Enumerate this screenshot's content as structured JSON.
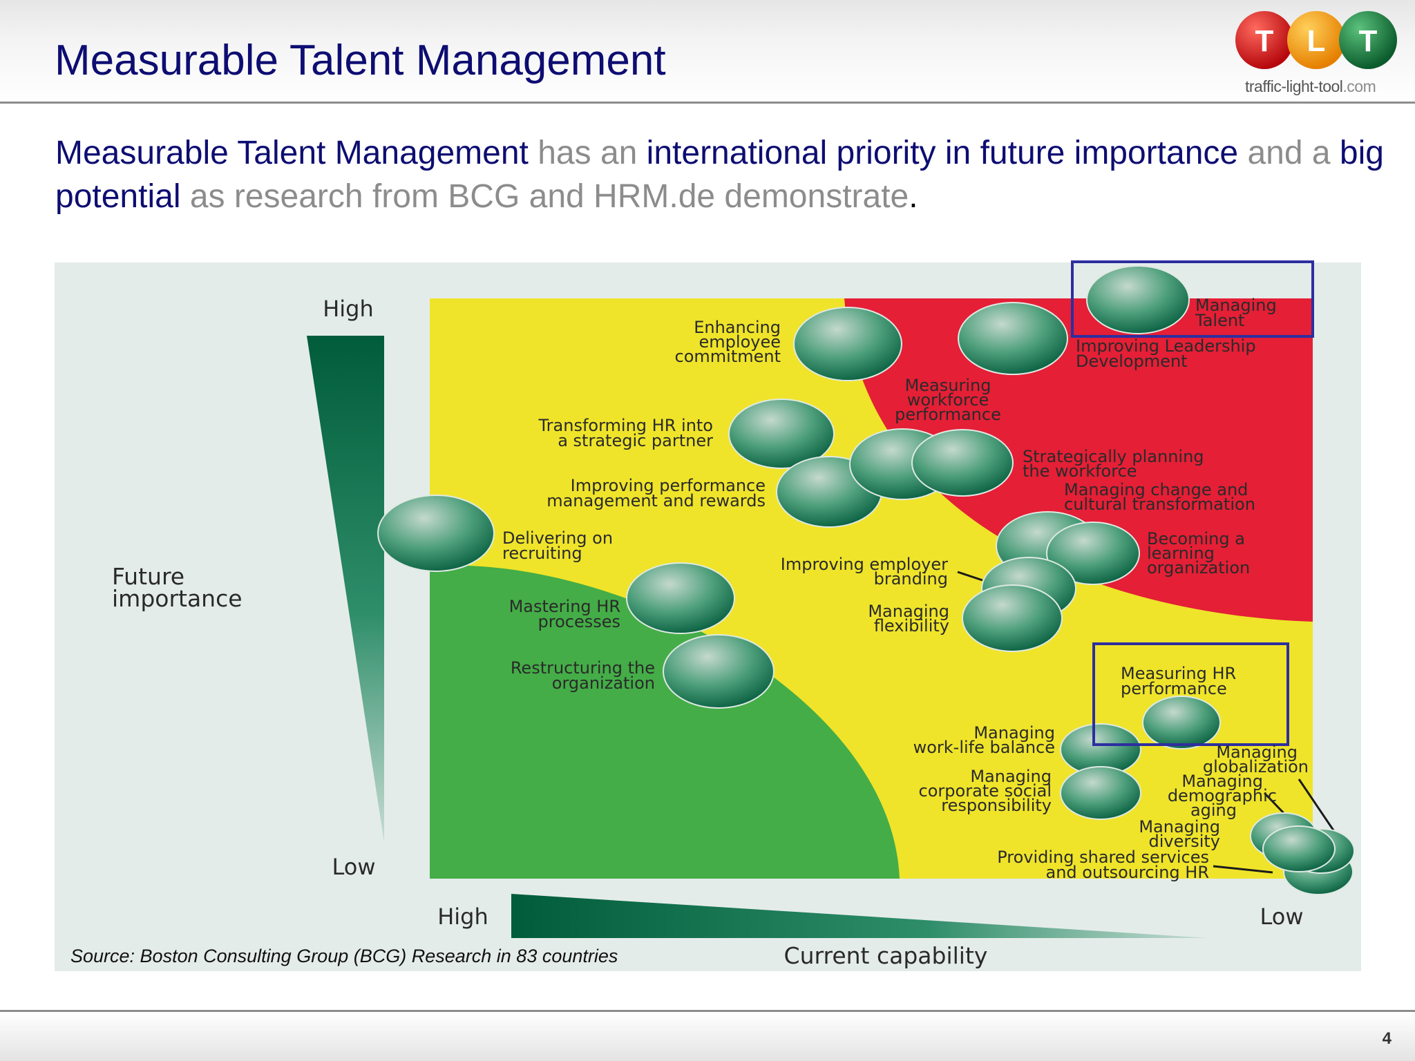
{
  "slide": {
    "title": "Measurable Talent Management",
    "page_number": "4"
  },
  "logo": {
    "letters": [
      "T",
      "L",
      "T"
    ],
    "colors": [
      "#d2161b",
      "#f4a21c",
      "#1f8a4c"
    ],
    "domain_main": "traffic-light-tool",
    "domain_tld": ".com"
  },
  "lede": {
    "p1": "Measurable Talent Management",
    "p2": " has an ",
    "p3": "international priority in future importance",
    "p4": " and a ",
    "p5": "big potential",
    "p6": " as research from BCG and HRM.de demonstrate",
    "p7": "."
  },
  "matrix": {
    "y_axis": {
      "label_lines": [
        "Future",
        "importance"
      ],
      "high": "High",
      "low": "Low"
    },
    "x_axis": {
      "label": "Current capability",
      "high": "High",
      "low": "Low"
    },
    "source": "Source: Boston Consulting Group (BCG) Research in 83 countries",
    "zone_colors": {
      "yellow": "#efe42a",
      "red": "#e41f36",
      "green": "#44ad47",
      "panel": "#e4ecea",
      "highlight": "#2e2ea0"
    },
    "labels": [
      {
        "id": "managing-talent",
        "lines": [
          "Managing",
          "Talent"
        ]
      },
      {
        "id": "improving-leadership",
        "lines": [
          "Improving Leadership",
          "Development"
        ]
      },
      {
        "id": "enhancing-commitment",
        "lines": [
          "Enhancing",
          "employee",
          "commitment"
        ]
      },
      {
        "id": "measuring-workforce",
        "lines": [
          "Measuring",
          "workforce",
          "performance"
        ]
      },
      {
        "id": "transforming-hr",
        "lines": [
          "Transforming HR into",
          "a strategic partner"
        ]
      },
      {
        "id": "strategic-planning",
        "lines": [
          "Strategically planning",
          "the workforce"
        ]
      },
      {
        "id": "managing-change",
        "lines": [
          "Managing change and",
          "cultural transformation"
        ]
      },
      {
        "id": "improving-performance",
        "lines": [
          "Improving performance",
          "management and rewards"
        ]
      },
      {
        "id": "delivering-recruiting",
        "lines": [
          "Delivering on",
          "recruiting"
        ]
      },
      {
        "id": "learning-org",
        "lines": [
          "Becoming a",
          "learning",
          "organization"
        ]
      },
      {
        "id": "employer-branding",
        "lines": [
          "Improving employer",
          "branding"
        ]
      },
      {
        "id": "mastering-hr",
        "lines": [
          "Mastering HR",
          "processes"
        ]
      },
      {
        "id": "managing-flexibility",
        "lines": [
          "Managing",
          "flexibility"
        ]
      },
      {
        "id": "restructuring",
        "lines": [
          "Restructuring the",
          "organization"
        ]
      },
      {
        "id": "measuring-hr",
        "lines": [
          "Measuring HR",
          "performance"
        ]
      },
      {
        "id": "work-life",
        "lines": [
          "Managing",
          "work-life balance"
        ]
      },
      {
        "id": "globalization",
        "lines": [
          "Managing",
          "globalization"
        ]
      },
      {
        "id": "csr",
        "lines": [
          "Managing",
          "corporate social",
          "responsibility"
        ]
      },
      {
        "id": "demographic",
        "lines": [
          "Managing",
          "demographic",
          "aging"
        ]
      },
      {
        "id": "diversity",
        "lines": [
          "Managing",
          "diversity"
        ]
      },
      {
        "id": "shared-services",
        "lines": [
          "Providing shared services",
          "and outsourcing HR"
        ]
      }
    ]
  }
}
